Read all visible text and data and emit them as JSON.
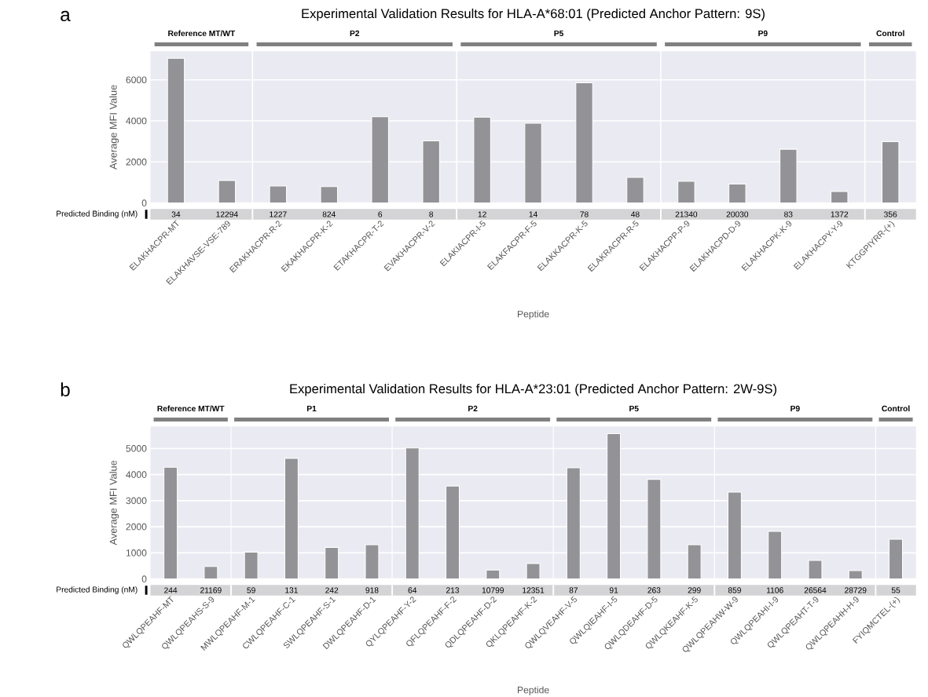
{
  "chart_data": [
    {
      "type": "bar",
      "title": "Experimental Validation Results for HLA-A*68:01 (Predicted Anchor Pattern: 9S)",
      "xlabel": "Peptide",
      "ylabel": "Average MFI Value",
      "categories": [
        "ELAKHACPR-MT",
        "ELAKHAVSE-VSE-789",
        "ERAKHACPR-R-2",
        "EKAKHACPR-K-2",
        "ETAKHACPR-T-2",
        "EVAKHACPR-V-2",
        "ELAKIACPR-I-5",
        "ELAKFACPR-F-5",
        "ELAKKACPR-K-5",
        "ELAKRACPR-R-5",
        "ELAKHACPP-P-9",
        "ELAKHACPD-D-9",
        "ELAKHACPK-K-9",
        "ELAKHACPY-Y-9",
        "KTGGPIYRR-(+)"
      ],
      "values": [
        7050,
        1100,
        830,
        800,
        4200,
        3030,
        4180,
        3890,
        5860,
        1250,
        1060,
        920,
        2620,
        560,
        2990
      ],
      "color": "#939397",
      "ylim": [
        0,
        7400
      ],
      "yticks": [
        0,
        2000,
        4000,
        6000
      ],
      "grid": "y",
      "bands": [
        {
          "axis": "x",
          "from": "ELAKHACPR-MT",
          "to": "ELAKHAVSE-VSE-789",
          "label": "Reference MT/WT",
          "color": "#eaeaf2"
        },
        {
          "axis": "x",
          "from": "ERAKHACPR-R-2",
          "to": "EVAKHACPR-V-2",
          "label": "P2",
          "color": "#eaeaf2"
        },
        {
          "axis": "x",
          "from": "ELAKIACPR-I-5",
          "to": "ELAKRACPR-R-5",
          "label": "P5",
          "color": "#eaeaf2"
        },
        {
          "axis": "x",
          "from": "ELAKHACPP-P-9",
          "to": "ELAKHACPY-Y-9",
          "label": "P9",
          "color": "#eaeaf2"
        },
        {
          "axis": "x",
          "from": "KTGGPIYRR-(+)",
          "to": "KTGGPIYRR-(+)",
          "label": "Control",
          "color": "#eaeaf2"
        }
      ],
      "annotations": [
        "a",
        "Predicted Binding (nM)",
        "34",
        "12294",
        "1227",
        "824",
        "6",
        "8",
        "12",
        "14",
        "78",
        "48",
        "21340",
        "20030",
        "83",
        "1372",
        "356"
      ]
    },
    {
      "type": "bar",
      "title": "Experimental Validation Results for HLA-A*23:01 (Predicted Anchor Pattern: 2W-9S)",
      "xlabel": "Peptide",
      "ylabel": "Average MFI Value",
      "categories": [
        "QWLQPEAHF-MT",
        "QWLQPEAHS-S-9",
        "MWLQPEAHF-M-1",
        "CWLQPEAHF-C-1",
        "SWLQPEAHF-S-1",
        "DWLQPEAHF-D-1",
        "QYLQPEAHF-Y-2",
        "QFLQPEAHF-F-2",
        "QDLQPEAHF-D-2",
        "QKLQPEAHF-K-2",
        "QWLQVEAHF-V-5",
        "QWLQIEAHF-I-5",
        "QWLQDEAHF-D-5",
        "QWLQKEAHF-K-5",
        "QWLQPEAHW-W-9",
        "QWLQPEAHI-I-9",
        "QWLQPEAHT-T-9",
        "QWLQPEAHH-H-9",
        "FYIQMCTEL-(+)"
      ],
      "values": [
        4280,
        480,
        1030,
        4620,
        1210,
        1310,
        5020,
        3560,
        340,
        590,
        4260,
        5570,
        3820,
        1310,
        3330,
        1820,
        710,
        320,
        1520
      ],
      "color": "#939397",
      "ylim": [
        0,
        5850
      ],
      "yticks": [
        0,
        1000,
        2000,
        3000,
        4000,
        5000
      ],
      "grid": "y",
      "bands": [
        {
          "axis": "x",
          "from": "QWLQPEAHF-MT",
          "to": "QWLQPEAHS-S-9",
          "label": "Reference MT/WT",
          "color": "#eaeaf2"
        },
        {
          "axis": "x",
          "from": "MWLQPEAHF-M-1",
          "to": "DWLQPEAHF-D-1",
          "label": "P1",
          "color": "#eaeaf2"
        },
        {
          "axis": "x",
          "from": "QYLQPEAHF-Y-2",
          "to": "QKLQPEAHF-K-2",
          "label": "P2",
          "color": "#eaeaf2"
        },
        {
          "axis": "x",
          "from": "QWLQVEAHF-V-5",
          "to": "QWLQKEAHF-K-5",
          "label": "P5",
          "color": "#eaeaf2"
        },
        {
          "axis": "x",
          "from": "QWLQPEAHW-W-9",
          "to": "QWLQPEAHH-H-9",
          "label": "P9",
          "color": "#eaeaf2"
        },
        {
          "axis": "x",
          "from": "FYIQMCTEL-(+)",
          "to": "FYIQMCTEL-(+)",
          "label": "Control",
          "color": "#eaeaf2"
        }
      ],
      "annotations": [
        "b",
        "Predicted Binding (nM)",
        "244",
        "21169",
        "59",
        "131",
        "242",
        "918",
        "64",
        "213",
        "10799",
        "12351",
        "87",
        "91",
        "263",
        "299",
        "859",
        "1106",
        "26564",
        "28729",
        "55"
      ]
    }
  ]
}
